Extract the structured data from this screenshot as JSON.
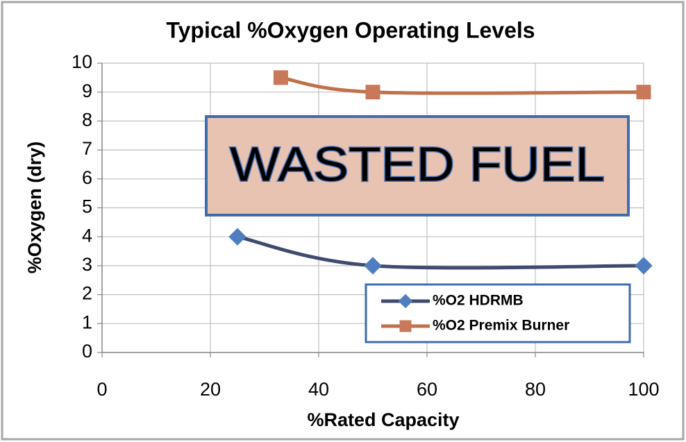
{
  "chart_data": {
    "type": "line",
    "title": "Typical %Oxygen Operating Levels",
    "xlabel": "%Rated Capacity",
    "ylabel": "%Oxygen (dry)",
    "series": [
      {
        "name": "%O2 HDRMB",
        "color": "#3f4b6e",
        "marker_color": "#4f7ec0",
        "marker": "diamond",
        "x": [
          25,
          50,
          100
        ],
        "values": [
          4,
          3,
          3
        ]
      },
      {
        "name": "%O2 Premix Burner",
        "color": "#c0704a",
        "marker_color": "#c9785a",
        "marker": "square",
        "x": [
          33,
          50,
          100
        ],
        "values": [
          9.5,
          9,
          9
        ]
      }
    ],
    "xlim": [
      0,
      100
    ],
    "xticks": [
      0,
      20,
      40,
      60,
      80,
      100
    ],
    "ylim": [
      0,
      10
    ],
    "yticks": [
      0,
      1,
      2,
      3,
      4,
      5,
      6,
      7,
      8,
      9,
      10
    ],
    "grid": true,
    "smooth": true,
    "legend": "lower right",
    "annotations": [
      {
        "text": "WASTED FUEL"
      }
    ]
  }
}
